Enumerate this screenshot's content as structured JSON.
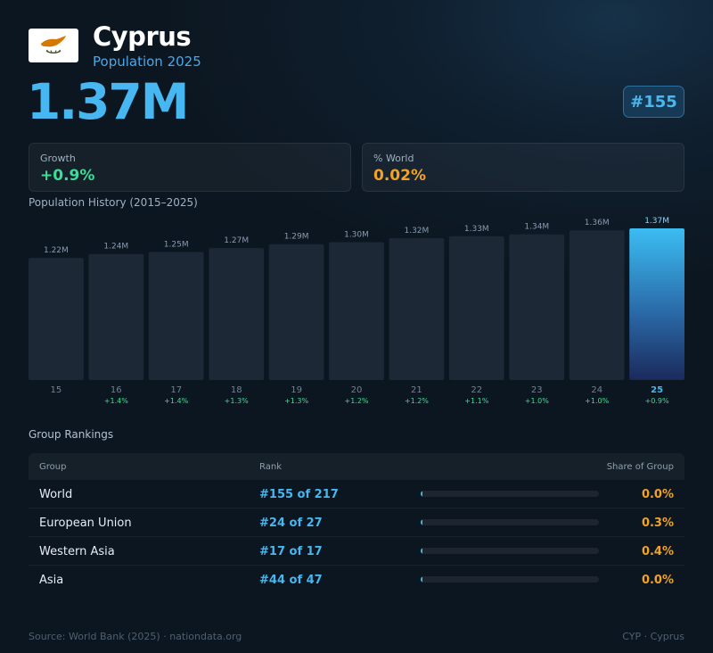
{
  "header": {
    "country": "Cyprus",
    "subtitle": "Population 2025",
    "population": "1.37M",
    "rank_badge": "#155",
    "flag_icon": "cyprus-flag-icon"
  },
  "stats": {
    "growth_label": "Growth",
    "growth_value": "+0.9%",
    "world_label": "% World",
    "world_value": "0.02%"
  },
  "colors": {
    "accent": "#46b7f0",
    "growth": "#3ddc97",
    "world": "#f0a327",
    "bar": "#1c2836"
  },
  "chart_data": {
    "type": "bar",
    "title": "Population History (2015–2025)",
    "categories": [
      "15",
      "16",
      "17",
      "18",
      "19",
      "20",
      "21",
      "22",
      "23",
      "24",
      "25"
    ],
    "values": [
      1.22,
      1.24,
      1.25,
      1.27,
      1.29,
      1.3,
      1.32,
      1.33,
      1.34,
      1.36,
      1.37
    ],
    "value_labels": [
      "1.22M",
      "1.24M",
      "1.25M",
      "1.27M",
      "1.29M",
      "1.30M",
      "1.32M",
      "1.33M",
      "1.34M",
      "1.36M",
      "1.37M"
    ],
    "growth_labels": [
      "",
      "+1.4%",
      "+1.4%",
      "+1.3%",
      "+1.3%",
      "+1.2%",
      "+1.2%",
      "+1.1%",
      "+1.0%",
      "+1.0%",
      "+0.9%"
    ],
    "highlight_index": 10,
    "grid": false
  },
  "rankings": {
    "title": "Group Rankings",
    "columns": [
      "Group",
      "Rank",
      "Share of Group"
    ],
    "rows": [
      {
        "group": "World",
        "rank": "#155 of 217",
        "share": "0.0%",
        "share_value": 0.0
      },
      {
        "group": "European Union",
        "rank": "#24 of 27",
        "share": "0.3%",
        "share_value": 0.3
      },
      {
        "group": "Western Asia",
        "rank": "#17 of 17",
        "share": "0.4%",
        "share_value": 0.4
      },
      {
        "group": "Asia",
        "rank": "#44 of 47",
        "share": "0.0%",
        "share_value": 0.0
      }
    ]
  },
  "footer": {
    "source": "Source: World Bank (2025) · nationdata.org",
    "code": "CYP · Cyprus"
  }
}
